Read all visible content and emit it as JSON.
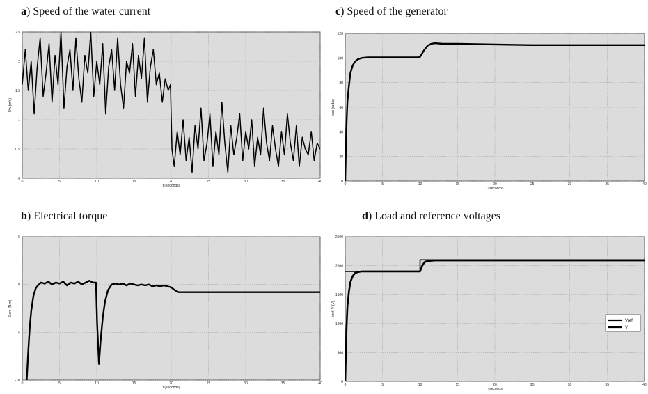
{
  "panels": [
    {
      "letter": "a",
      "title": ") Speed of the water current",
      "chart_data": {
        "type": "line",
        "xlabel": "t (seconds)",
        "ylabel": "Uw (m/s)",
        "xlim": [
          0,
          40
        ],
        "ylim": [
          0,
          2.5
        ],
        "xticks": [
          0,
          5,
          10,
          15,
          20,
          25,
          30,
          35,
          40
        ],
        "yticks": [
          0,
          0.5,
          1,
          1.5,
          2,
          2.5
        ],
        "ytick_labels": [
          "0",
          "0.5",
          "1",
          "1.5",
          "2",
          "2.5"
        ],
        "grid": true,
        "series": [
          {
            "x": [
              0,
              0.4,
              0.8,
              1.2,
              1.6,
              2.0,
              2.4,
              2.8,
              3.2,
              3.6,
              4.0,
              4.4,
              4.8,
              5.2,
              5.6,
              6.0,
              6.4,
              6.8,
              7.2,
              7.6,
              8.0,
              8.4,
              8.8,
              9.2,
              9.6,
              10.0,
              10.4,
              10.8,
              11.2,
              11.6,
              12.0,
              12.4,
              12.8,
              13.2,
              13.6,
              14.0,
              14.4,
              14.8,
              15.2,
              15.6,
              16.0,
              16.4,
              16.8,
              17.2,
              17.6,
              18.0,
              18.4,
              18.8,
              19.2,
              19.6,
              19.9,
              20.1,
              20.4,
              20.8,
              21.2,
              21.6,
              22.0,
              22.4,
              22.8,
              23.2,
              23.6,
              24.0,
              24.4,
              24.8,
              25.2,
              25.6,
              26.0,
              26.4,
              26.8,
              27.2,
              27.6,
              28.0,
              28.4,
              28.8,
              29.2,
              29.6,
              30.0,
              30.4,
              30.8,
              31.2,
              31.6,
              32.0,
              32.4,
              32.8,
              33.2,
              33.6,
              34.0,
              34.4,
              34.8,
              35.2,
              35.6,
              36.0,
              36.4,
              36.8,
              37.2,
              37.6,
              38.0,
              38.4,
              38.8,
              39.2,
              39.6,
              40.0
            ],
            "y": [
              1.6,
              2.2,
              1.5,
              2.0,
              1.1,
              1.9,
              2.4,
              1.4,
              1.8,
              2.3,
              1.3,
              2.1,
              1.6,
              2.5,
              1.2,
              1.9,
              2.2,
              1.5,
              2.4,
              1.7,
              1.3,
              2.1,
              1.8,
              2.5,
              1.4,
              2.0,
              1.6,
              2.3,
              1.1,
              1.9,
              2.2,
              1.5,
              2.4,
              1.6,
              1.2,
              2.0,
              1.8,
              2.3,
              1.4,
              2.1,
              1.7,
              2.4,
              1.3,
              1.9,
              2.2,
              1.6,
              1.8,
              1.3,
              1.7,
              1.5,
              1.6,
              0.5,
              0.2,
              0.8,
              0.4,
              1.0,
              0.3,
              0.7,
              0.1,
              0.9,
              0.5,
              1.2,
              0.3,
              0.6,
              1.1,
              0.2,
              0.8,
              0.4,
              1.3,
              0.6,
              0.1,
              0.9,
              0.4,
              0.7,
              1.1,
              0.3,
              0.8,
              0.5,
              1.0,
              0.2,
              0.7,
              0.4,
              1.2,
              0.6,
              0.3,
              0.9,
              0.5,
              0.2,
              0.8,
              0.4,
              1.1,
              0.6,
              0.3,
              0.9,
              0.2,
              0.7,
              0.5,
              0.4,
              0.8,
              0.3,
              0.6,
              0.5
            ]
          }
        ]
      }
    },
    {
      "letter": "c",
      "title": ") Speed of the generator",
      "chart_data": {
        "type": "line",
        "xlabel": "t (seconds)",
        "ylabel": "wm (rad/s)",
        "xlim": [
          0,
          40
        ],
        "ylim": [
          0,
          120
        ],
        "xticks": [
          0,
          5,
          10,
          15,
          20,
          25,
          30,
          35,
          40
        ],
        "yticks": [
          0,
          20,
          40,
          60,
          80,
          100,
          120
        ],
        "ytick_labels": [
          "0",
          "20",
          "40",
          "60",
          "80",
          "100",
          "120"
        ],
        "grid": true,
        "series": [
          {
            "x": [
              0,
              0.1,
              0.2,
              0.3,
              0.5,
              0.7,
              1.0,
              1.3,
              1.7,
              2.2,
              3,
              5,
              8,
              9.8,
              10,
              10.5,
              11,
              11.5,
              12,
              13,
              15,
              20,
              25,
              30,
              35,
              40
            ],
            "y": [
              0,
              30,
              50,
              65,
              78,
              88,
              94,
              97,
              99,
              100,
              100.5,
              100.5,
              100.5,
              100.5,
              101,
              106,
              110,
              111.5,
              112,
              111.5,
              111.5,
              111,
              110.5,
              110.5,
              110.5,
              110.5
            ]
          }
        ]
      }
    },
    {
      "letter": "b",
      "title": ") Electrical torque",
      "chart_data": {
        "type": "line",
        "xlabel": "t (seconds)",
        "ylabel": "Cem (N.m)",
        "xlim": [
          0,
          40
        ],
        "ylim": [
          -10,
          5
        ],
        "xticks": [
          0,
          5,
          10,
          15,
          20,
          25,
          30,
          35,
          40
        ],
        "yticks": [
          -10,
          -5,
          0,
          5
        ],
        "ytick_labels": [
          "-10",
          "-5",
          "0",
          "5"
        ],
        "grid": true,
        "series": [
          {
            "x": [
              0.6,
              0.8,
              1.0,
              1.2,
              1.5,
              1.8,
              2.1,
              2.5,
              3,
              3.5,
              4,
              4.5,
              5,
              5.5,
              6,
              6.5,
              7,
              7.5,
              8,
              8.5,
              9,
              9.5,
              9.9,
              10.05,
              10.3,
              10.5,
              10.8,
              11.1,
              11.5,
              12,
              12.5,
              13,
              13.5,
              14,
              14.5,
              15,
              15.5,
              16,
              16.5,
              17,
              17.5,
              18,
              18.5,
              19,
              19.5,
              20,
              20.5,
              21,
              25,
              30,
              35,
              40
            ],
            "y": [
              -10,
              -7,
              -4.5,
              -2.8,
              -1.2,
              -0.4,
              -0.1,
              0.2,
              0.1,
              0.3,
              0.0,
              0.2,
              0.1,
              0.3,
              -0.1,
              0.2,
              0.1,
              0.3,
              0.0,
              0.2,
              0.4,
              0.2,
              0.2,
              -4,
              -8.3,
              -6,
              -3.5,
              -1.8,
              -0.6,
              0.0,
              0.1,
              0.0,
              0.1,
              -0.1,
              0.1,
              0.0,
              -0.1,
              0.0,
              -0.1,
              0.0,
              -0.2,
              -0.1,
              -0.2,
              -0.1,
              -0.2,
              -0.3,
              -0.6,
              -0.8,
              -0.8,
              -0.8,
              -0.8,
              -0.8
            ]
          }
        ]
      }
    },
    {
      "letter": "d",
      "title": ") Load and reference voltages",
      "chart_data": {
        "type": "line",
        "xlabel": "t (seconds)",
        "ylabel": "Vref, V (V)",
        "xlim": [
          0,
          40
        ],
        "ylim": [
          0,
          2500
        ],
        "xticks": [
          0,
          5,
          10,
          15,
          20,
          25,
          30,
          35,
          40
        ],
        "yticks": [
          0,
          500,
          1000,
          1500,
          2000,
          2500
        ],
        "ytick_labels": [
          "0",
          "500",
          "1000",
          "1500",
          "2000",
          "2500"
        ],
        "grid": true,
        "legend": {
          "placement": "right",
          "entries": [
            "Vref",
            "V"
          ]
        },
        "series": [
          {
            "name": "Vref",
            "x": [
              0,
              10,
              10,
              40
            ],
            "y": [
              1900,
              1900,
              2100,
              2100
            ]
          },
          {
            "name": "V",
            "x": [
              0,
              0.1,
              0.2,
              0.3,
              0.5,
              0.7,
              1.0,
              1.3,
              1.7,
              2.2,
              3,
              5,
              9.9,
              10.0,
              10.3,
              10.6,
              11,
              12,
              15,
              20,
              25,
              30,
              35,
              40
            ],
            "y": [
              0,
              600,
              1000,
              1300,
              1560,
              1720,
              1820,
              1870,
              1890,
              1900,
              1900,
              1900,
              1900,
              1900,
              2000,
              2060,
              2080,
              2090,
              2090,
              2090,
              2090,
              2090,
              2090,
              2090
            ]
          }
        ]
      }
    }
  ]
}
